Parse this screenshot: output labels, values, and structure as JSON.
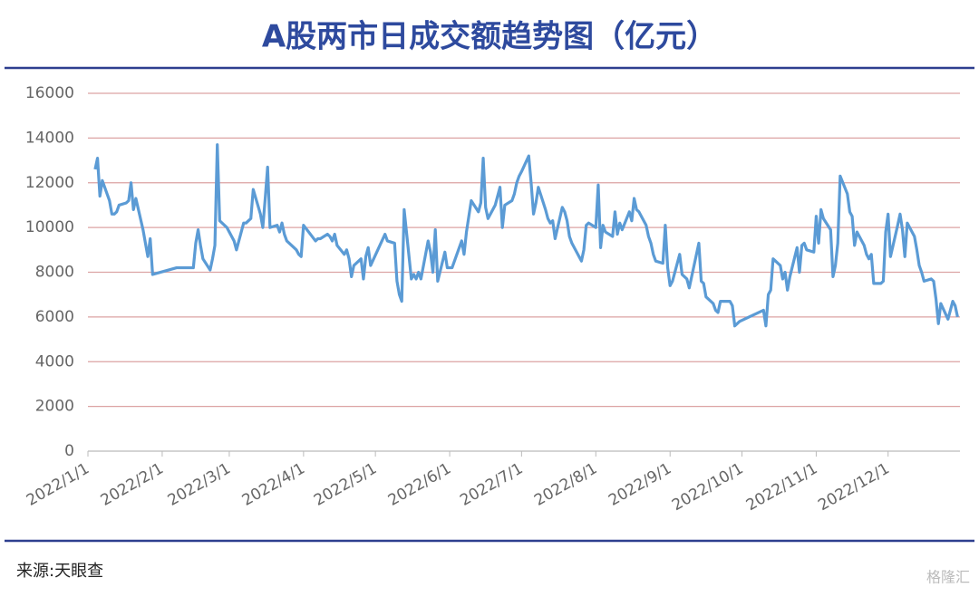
{
  "chart_data": {
    "type": "line",
    "title": "A股两市日成交额趋势图（亿元）",
    "source": "来源:天眼查",
    "watermark": "格隆汇",
    "color": "#5b9bd5",
    "grid": true,
    "xlim": [
      "2022/1/1",
      "2022/12/31"
    ],
    "xticks": [
      "2022/1/1",
      "2022/2/1",
      "2022/3/1",
      "2022/4/1",
      "2022/5/1",
      "2022/6/1",
      "2022/7/1",
      "2022/8/1",
      "2022/9/1",
      "2022/10/1",
      "2022/11/1",
      "2022/12/1"
    ],
    "ylim": [
      0,
      16000
    ],
    "yticks": [
      0,
      2000,
      4000,
      6000,
      8000,
      10000,
      12000,
      14000,
      16000
    ],
    "x": [
      "2022/1/4",
      "2022/1/5",
      "2022/1/6",
      "2022/1/7",
      "2022/1/10",
      "2022/1/11",
      "2022/1/12",
      "2022/1/13",
      "2022/1/14",
      "2022/1/17",
      "2022/1/18",
      "2022/1/19",
      "2022/1/20",
      "2022/1/21",
      "2022/1/24",
      "2022/1/25",
      "2022/1/26",
      "2022/1/27",
      "2022/1/28",
      "2022/2/7",
      "2022/2/8",
      "2022/2/9",
      "2022/2/10",
      "2022/2/11",
      "2022/2/14",
      "2022/2/15",
      "2022/2/16",
      "2022/2/17",
      "2022/2/18",
      "2022/2/21",
      "2022/2/22",
      "2022/2/23",
      "2022/2/24",
      "2022/2/25",
      "2022/2/28",
      "2022/3/1",
      "2022/3/2",
      "2022/3/3",
      "2022/3/4",
      "2022/3/7",
      "2022/3/8",
      "2022/3/9",
      "2022/3/10",
      "2022/3/11",
      "2022/3/14",
      "2022/3/15",
      "2022/3/16",
      "2022/3/17",
      "2022/3/18",
      "2022/3/21",
      "2022/3/22",
      "2022/3/23",
      "2022/3/24",
      "2022/3/25",
      "2022/3/28",
      "2022/3/29",
      "2022/3/30",
      "2022/3/31",
      "2022/4/1",
      "2022/4/6",
      "2022/4/7",
      "2022/4/8",
      "2022/4/11",
      "2022/4/12",
      "2022/4/13",
      "2022/4/14",
      "2022/4/15",
      "2022/4/18",
      "2022/4/19",
      "2022/4/20",
      "2022/4/21",
      "2022/4/22",
      "2022/4/25",
      "2022/4/26",
      "2022/4/27",
      "2022/4/28",
      "2022/4/29",
      "2022/5/5",
      "2022/5/6",
      "2022/5/9",
      "2022/5/10",
      "2022/5/11",
      "2022/5/12",
      "2022/5/13",
      "2022/5/16",
      "2022/5/17",
      "2022/5/18",
      "2022/5/19",
      "2022/5/20",
      "2022/5/23",
      "2022/5/24",
      "2022/5/25",
      "2022/5/26",
      "2022/5/27",
      "2022/5/30",
      "2022/5/31",
      "2022/6/1",
      "2022/6/2",
      "2022/6/6",
      "2022/6/7",
      "2022/6/8",
      "2022/6/9",
      "2022/6/10",
      "2022/6/13",
      "2022/6/14",
      "2022/6/15",
      "2022/6/16",
      "2022/6/17",
      "2022/6/20",
      "2022/6/21",
      "2022/6/22",
      "2022/6/23",
      "2022/6/24",
      "2022/6/27",
      "2022/6/28",
      "2022/6/29",
      "2022/6/30",
      "2022/7/1",
      "2022/7/4",
      "2022/7/5",
      "2022/7/6",
      "2022/7/7",
      "2022/7/8",
      "2022/7/11",
      "2022/7/12",
      "2022/7/13",
      "2022/7/14",
      "2022/7/15",
      "2022/7/18",
      "2022/7/19",
      "2022/7/20",
      "2022/7/21",
      "2022/7/22",
      "2022/7/25",
      "2022/7/26",
      "2022/7/27",
      "2022/7/28",
      "2022/7/29",
      "2022/8/1",
      "2022/8/2",
      "2022/8/3",
      "2022/8/4",
      "2022/8/5",
      "2022/8/8",
      "2022/8/9",
      "2022/8/10",
      "2022/8/11",
      "2022/8/12",
      "2022/8/15",
      "2022/8/16",
      "2022/8/17",
      "2022/8/18",
      "2022/8/19",
      "2022/8/22",
      "2022/8/23",
      "2022/8/24",
      "2022/8/25",
      "2022/8/26",
      "2022/8/29",
      "2022/8/30",
      "2022/8/31",
      "2022/9/1",
      "2022/9/2",
      "2022/9/5",
      "2022/9/6",
      "2022/9/7",
      "2022/9/8",
      "2022/9/9",
      "2022/9/13",
      "2022/9/14",
      "2022/9/15",
      "2022/9/16",
      "2022/9/19",
      "2022/9/20",
      "2022/9/21",
      "2022/9/22",
      "2022/9/23",
      "2022/9/26",
      "2022/9/27",
      "2022/9/28",
      "2022/9/29",
      "2022/9/30",
      "2022/10/10",
      "2022/10/11",
      "2022/10/12",
      "2022/10/13",
      "2022/10/14",
      "2022/10/17",
      "2022/10/18",
      "2022/10/19",
      "2022/10/20",
      "2022/10/21",
      "2022/10/24",
      "2022/10/25",
      "2022/10/26",
      "2022/10/27",
      "2022/10/28",
      "2022/10/31",
      "2022/11/1",
      "2022/11/2",
      "2022/11/3",
      "2022/11/4",
      "2022/11/7",
      "2022/11/8",
      "2022/11/9",
      "2022/11/10",
      "2022/11/11",
      "2022/11/14",
      "2022/11/15",
      "2022/11/16",
      "2022/11/17",
      "2022/11/18",
      "2022/11/21",
      "2022/11/22",
      "2022/11/23",
      "2022/11/24",
      "2022/11/25",
      "2022/11/28",
      "2022/11/29",
      "2022/11/30",
      "2022/12/1",
      "2022/12/2",
      "2022/12/5",
      "2022/12/6",
      "2022/12/7",
      "2022/12/8",
      "2022/12/9",
      "2022/12/12",
      "2022/12/13",
      "2022/12/14",
      "2022/12/15",
      "2022/12/16",
      "2022/12/19",
      "2022/12/20",
      "2022/12/21",
      "2022/12/22",
      "2022/12/23",
      "2022/12/26",
      "2022/12/27",
      "2022/12/28",
      "2022/12/29",
      "2022/12/30"
    ],
    "values": [
      12600,
      13100,
      11400,
      12100,
      11200,
      10600,
      10600,
      10700,
      11000,
      11100,
      11200,
      12000,
      10800,
      11300,
      9900,
      9300,
      8700,
      9500,
      7900,
      8200,
      8200,
      8200,
      8200,
      8200,
      8200,
      9300,
      9900,
      9200,
      8600,
      8100,
      8600,
      9200,
      13700,
      10300,
      10000,
      9800,
      9600,
      9400,
      9000,
      10200,
      10200,
      10300,
      10400,
      11700,
      10600,
      10000,
      11300,
      12700,
      10000,
      10100,
      9800,
      10200,
      9700,
      9400,
      9100,
      9000,
      8800,
      8700,
      10100,
      9400,
      9500,
      9500,
      9700,
      9600,
      9400,
      9700,
      9200,
      8800,
      9000,
      8600,
      7800,
      8300,
      8600,
      7700,
      8700,
      9100,
      8300,
      9700,
      9400,
      9300,
      7600,
      7000,
      6700,
      10800,
      7700,
      7900,
      7700,
      8000,
      7700,
      9400,
      8900,
      8000,
      9900,
      7600,
      8900,
      8200,
      8200,
      8200,
      9400,
      8800,
      9800,
      10500,
      11200,
      10700,
      11100,
      13100,
      10900,
      10400,
      11000,
      11400,
      11800,
      10000,
      11000,
      11200,
      11500,
      12000,
      12300,
      12500,
      13200,
      12000,
      10600,
      11100,
      11800,
      10800,
      10400,
      10200,
      10300,
      9500,
      10900,
      10700,
      10300,
      9600,
      9300,
      8700,
      8500,
      9000,
      10100,
      10200,
      10000,
      11900,
      9100,
      10100,
      9800,
      9600,
      10700,
      9700,
      10200,
      9900,
      10700,
      10300,
      11300,
      10800,
      10700,
      10100,
      9600,
      9300,
      8800,
      8500,
      8400,
      10100,
      8200,
      7400,
      7600,
      8800,
      7900,
      7800,
      7700,
      7300,
      9300,
      7600,
      7500,
      6900,
      6600,
      6300,
      6200,
      6700,
      6700,
      6700,
      6500,
      5600,
      5700,
      5800,
      6300,
      5600,
      7000,
      7200,
      8600,
      8300,
      7700,
      8000,
      7200,
      7800,
      9100,
      8000,
      9200,
      9300,
      9000,
      8900,
      10500,
      9300,
      10800,
      10400,
      9900,
      7800,
      8300,
      9300,
      12300,
      11500,
      10700,
      10500,
      9200,
      9800,
      9200,
      8800,
      8600,
      8800,
      7500,
      7500,
      7600,
      9800,
      10600,
      8700,
      10100,
      10600,
      9900,
      8700,
      10200,
      9600,
      9000,
      8300,
      8000,
      7600,
      7700,
      7600,
      6800,
      5700,
      6600,
      5900,
      6300,
      6700,
      6500,
      6000
    ]
  }
}
